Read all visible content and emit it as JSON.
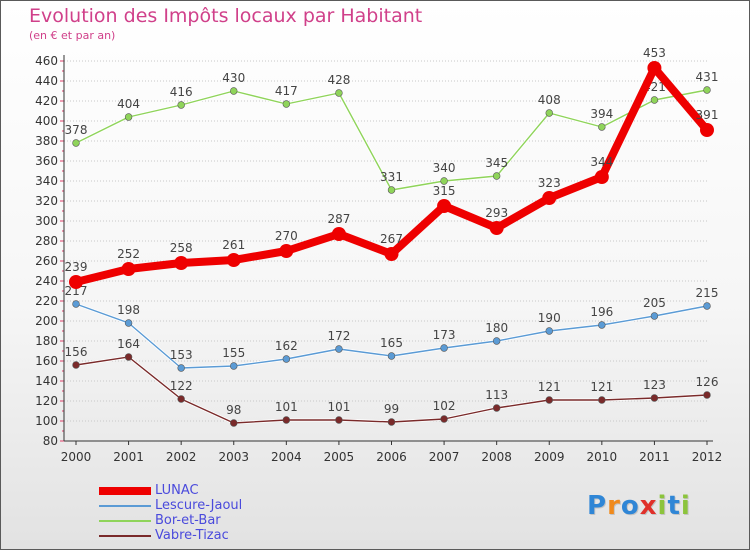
{
  "title": "Evolution des Impôts locaux par Habitant",
  "subtitle": "(en € et par an)",
  "brand": {
    "text": "Proxiti",
    "letters": [
      "P",
      "r",
      "o",
      "x",
      "i",
      "t",
      "i"
    ],
    "letter_colors": [
      "#2f86d6",
      "#f08a1c",
      "#2f86d6",
      "#e0302a",
      "#8cc43c",
      "#2f86d6",
      "#8cc43c"
    ]
  },
  "chart_data": {
    "type": "line",
    "title": "Evolution des Impôts locaux par Habitant",
    "subtitle": "(en € et par an)",
    "xlabel": "",
    "ylabel": "",
    "x": [
      "2000",
      "2001",
      "2002",
      "2003",
      "2004",
      "2005",
      "2006",
      "2007",
      "2008",
      "2009",
      "2010",
      "2011",
      "2012"
    ],
    "ylim": [
      80,
      460
    ],
    "y_ticks": [
      80,
      100,
      120,
      140,
      160,
      180,
      200,
      220,
      240,
      260,
      280,
      300,
      320,
      340,
      360,
      380,
      400,
      420,
      440,
      460
    ],
    "grid": "horizontal dotted",
    "legend_position": "bottom-left",
    "series": [
      {
        "name": "LUNAC",
        "color": "#ee0000",
        "thick": true,
        "values": [
          239,
          252,
          258,
          261,
          270,
          287,
          267,
          315,
          293,
          323,
          344,
          453,
          391
        ]
      },
      {
        "name": "Lescure-Jaoul",
        "color": "#5b9bd5",
        "thick": false,
        "values": [
          217,
          198,
          153,
          155,
          162,
          172,
          165,
          173,
          180,
          190,
          196,
          205,
          215
        ]
      },
      {
        "name": "Bor-et-Bar",
        "color": "#8fd45a",
        "thick": false,
        "values": [
          378,
          404,
          416,
          430,
          417,
          428,
          331,
          340,
          345,
          408,
          394,
          421,
          431
        ]
      },
      {
        "name": "Vabre-Tizac",
        "color": "#7a2a2a",
        "thick": false,
        "values": [
          156,
          164,
          122,
          98,
          101,
          101,
          99,
          102,
          113,
          121,
          121,
          123,
          126
        ]
      }
    ]
  }
}
